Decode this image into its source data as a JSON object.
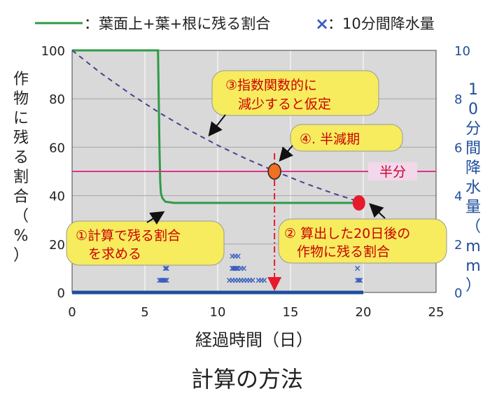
{
  "legend": {
    "line_label": "：葉面上+葉+根に残る割合",
    "marker_label": "：10分間降水量",
    "marker_symbol": "×"
  },
  "caption": "計算の方法",
  "chart_data": {
    "type": "line",
    "xlabel": "経過時間（日）",
    "ylabel_left": "作物に残る割合（%）",
    "ylabel_right": "10分間降水量（mm）",
    "xlim": [
      0,
      25
    ],
    "ylim_left": [
      0,
      100
    ],
    "ylim_right": [
      0,
      10
    ],
    "xticks": [
      "0",
      "5",
      "10",
      "15",
      "20",
      "25"
    ],
    "yticks_left": [
      "0",
      "20",
      "40",
      "60",
      "80",
      "100"
    ],
    "yticks_right": [
      "0",
      "2",
      "4",
      "6",
      "8",
      "10"
    ],
    "grid": true,
    "legend_position": "top",
    "series": [
      {
        "kind": "solid-line",
        "color": "#2e9b46",
        "axis": "left",
        "x": [
          0,
          5.9,
          5.95,
          6.0,
          6.05,
          6.1,
          6.2,
          6.4,
          7,
          10,
          15,
          19.7
        ],
        "y": [
          100,
          100,
          80,
          60,
          46,
          41,
          39,
          37.5,
          37,
          37,
          37,
          37
        ]
      },
      {
        "kind": "dashed-line",
        "color": "#4b3f8f",
        "axis": "left",
        "x": [
          0,
          2,
          4,
          6,
          8,
          10,
          12,
          14,
          16,
          18,
          19.7
        ],
        "y": [
          100,
          90.5,
          82.0,
          74.2,
          67.2,
          60.8,
          55.1,
          49.9,
          45.1,
          40.8,
          37.5
        ]
      },
      {
        "kind": "horizontal-line",
        "color": "#e0318a",
        "axis": "left",
        "y": 50
      },
      {
        "kind": "scatter-x",
        "color": "#3a5fbf",
        "axis": "right",
        "x": [
          6.0,
          6.1,
          6.2,
          6.3,
          6.4,
          6.5,
          6.4,
          6.5,
          6.5,
          10.8,
          11.0,
          11.2,
          11.4,
          11.6,
          11.8,
          12.0,
          12.2,
          12.4,
          11.0,
          11.1,
          11.2,
          11.3,
          11.4,
          11.0,
          11.2,
          11.4,
          11.6,
          11.8,
          11.0,
          11.2,
          12.8,
          13.0,
          13.2,
          19.6,
          19.7,
          19.8,
          19.6
        ],
        "y": [
          0.5,
          0.5,
          0.5,
          0.5,
          0.5,
          0.5,
          1.0,
          1.0,
          1.0,
          0.5,
          0.5,
          0.5,
          0.5,
          0.5,
          0.5,
          0.5,
          0.5,
          0.5,
          1.0,
          1.0,
          1.0,
          1.0,
          1.0,
          1.5,
          1.5,
          1.5,
          1.0,
          1.0,
          1.0,
          1.0,
          0.5,
          0.5,
          0.5,
          0.5,
          0.5,
          0.5,
          1.0
        ]
      },
      {
        "kind": "baseline",
        "color": "#1f4e9c",
        "axis": "right",
        "x": [
          0,
          20
        ],
        "y": [
          0,
          0
        ]
      }
    ],
    "points": [
      {
        "id": "half-life-point",
        "x": 13.9,
        "y": 50,
        "color": "#f07020"
      },
      {
        "id": "day20-point",
        "x": 19.7,
        "y": 37,
        "color": "#e8192c"
      }
    ],
    "annotations": [
      {
        "id": "callout-1",
        "text": "①計算で残る割合\nを求める"
      },
      {
        "id": "callout-2",
        "text": "② 算出した20日後の\n作物に残る割合"
      },
      {
        "id": "callout-3",
        "text": "③指数関数的に\n減少すると仮定"
      },
      {
        "id": "callout-4",
        "text": "④. 半減期"
      },
      {
        "id": "half-label",
        "text": "半分"
      }
    ]
  }
}
